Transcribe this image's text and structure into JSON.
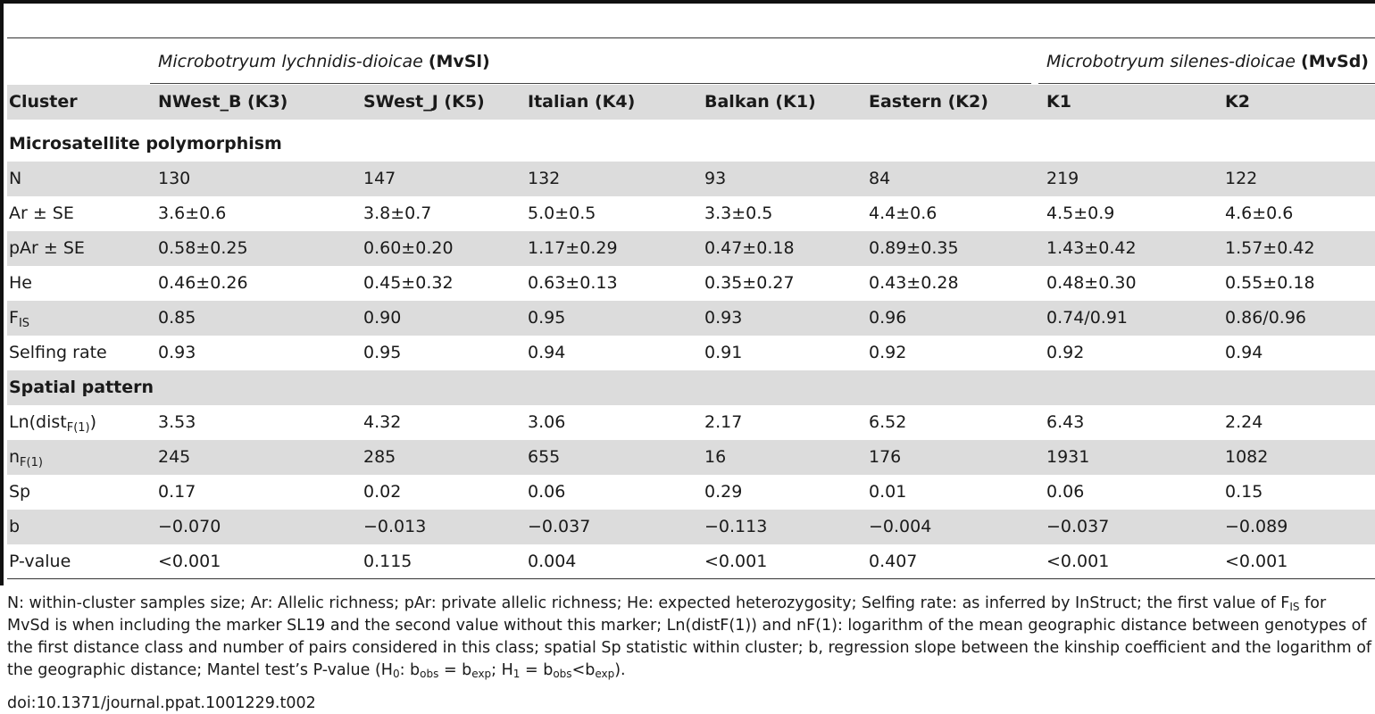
{
  "groups": {
    "mvsl": {
      "species": "Microbotryum lychnidis-dioicae",
      "abbr": "(MvSl)"
    },
    "mvsd": {
      "species": "Microbotryum silenes-dioicae",
      "abbr": "(MvSd)"
    }
  },
  "header": {
    "label": "Cluster",
    "columns": [
      "NWest_B (K3)",
      "SWest_J (K5)",
      "Italian (K4)",
      "Balkan (K1)",
      "Eastern (K2)",
      "K1",
      "K2"
    ]
  },
  "sections": {
    "microsatellite": "Microsatellite polymorphism",
    "spatial": "Spatial pattern"
  },
  "rows": {
    "n": {
      "label": "N",
      "values": [
        "130",
        "147",
        "132",
        "93",
        "84",
        "219",
        "122"
      ]
    },
    "ar": {
      "label": "Ar ± SE",
      "values": [
        "3.6±0.6",
        "3.8±0.7",
        "5.0±0.5",
        "3.3±0.5",
        "4.4±0.6",
        "4.5±0.9",
        "4.6±0.6"
      ]
    },
    "par": {
      "label": "pAr ± SE",
      "values": [
        "0.58±0.25",
        "0.60±0.20",
        "1.17±0.29",
        "0.47±0.18",
        "0.89±0.35",
        "1.43±0.42",
        "1.57±0.42"
      ]
    },
    "he": {
      "label": "He",
      "values": [
        "0.46±0.26",
        "0.45±0.32",
        "0.63±0.13",
        "0.35±0.27",
        "0.43±0.28",
        "0.48±0.30",
        "0.55±0.18"
      ]
    },
    "fis": {
      "label_main": "F",
      "label_sub": "IS",
      "values": [
        "0.85",
        "0.90",
        "0.95",
        "0.93",
        "0.96",
        "0.74/0.91",
        "0.86/0.96"
      ]
    },
    "selfing": {
      "label": "Selfing rate",
      "values": [
        "0.93",
        "0.95",
        "0.94",
        "0.91",
        "0.92",
        "0.92",
        "0.94"
      ]
    },
    "lndist": {
      "label_main": "Ln(dist",
      "label_sub": "F(1)",
      "label_tail": ")",
      "values": [
        "3.53",
        "4.32",
        "3.06",
        "2.17",
        "6.52",
        "6.43",
        "2.24"
      ]
    },
    "nf1": {
      "label_main": "n",
      "label_sub": "F(1)",
      "values": [
        "245",
        "285",
        "655",
        "16",
        "176",
        "1931",
        "1082"
      ]
    },
    "sp": {
      "label": "Sp",
      "values": [
        "0.17",
        "0.02",
        "0.06",
        "0.29",
        "0.01",
        "0.06",
        "0.15"
      ]
    },
    "b": {
      "label": "b",
      "values": [
        "−0.070",
        "−0.013",
        "−0.037",
        "−0.113",
        "−0.004",
        "−0.037",
        "−0.089"
      ]
    },
    "pvalue": {
      "label": "P-value",
      "values": [
        "<0.001",
        "0.115",
        "0.004",
        "<0.001",
        "0.407",
        "<0.001",
        "<0.001"
      ]
    }
  },
  "footnote": {
    "t1": "N: within-cluster samples size; Ar: Allelic richness; pAr: private allelic richness; He: expected heterozygosity; Selfing rate: as inferred by InStruct; the first value of F",
    "t1_sub": "IS",
    "t2": " for MvSd is when including the marker SL19 and the second value without this marker; Ln(distF(1)) and nF(1): logarithm of the mean geographic distance between genotypes of the first distance class and number of pairs considered in this class; spatial Sp statistic within cluster; b, regression slope between the kinship coefficient and the logarithm of the geographic distance; Mantel test’s P-value (H",
    "h0_sub": "0",
    "t3": ": b",
    "obs1_sub": "obs",
    "t4": " = b",
    "exp1_sub": "exp",
    "t5": "; H",
    "h1_sub": "1",
    "t6": " = b",
    "obs2_sub": "obs",
    "t7": "<b",
    "exp2_sub": "exp",
    "t8": ")."
  },
  "doi": "doi:10.1371/journal.ppat.1001229.t002"
}
